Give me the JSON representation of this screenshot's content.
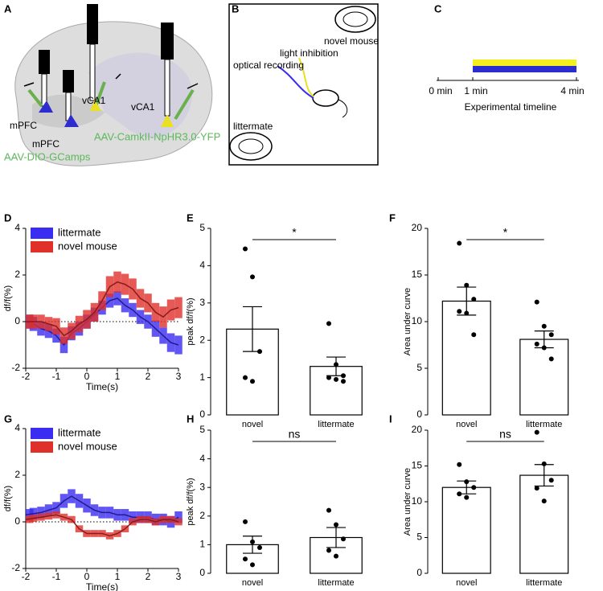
{
  "panels": [
    "A",
    "B",
    "C",
    "D",
    "E",
    "F",
    "G",
    "H",
    "I"
  ],
  "diagram_a": {
    "labels": [
      "mPFC",
      "mPFC",
      "vCA1",
      "vCA1"
    ],
    "virus_labels": [
      "AAV-CamkII-NpHR3.0-YFP",
      "AAV-DIO-GCamps"
    ]
  },
  "diagram_b": {
    "labels": [
      "novel mouse",
      "light inhibition",
      "optical recording",
      "littermate"
    ]
  },
  "diagram_c": {
    "ticks": [
      "0 min",
      "1 min",
      "4 min"
    ],
    "label": "Experimental timeline"
  },
  "chart_data": [
    {
      "type": "line",
      "panel": "D",
      "xlabel": "Time(s)",
      "ylabel": "df/f(%)",
      "x": [
        -2,
        -1.75,
        -1.5,
        -1.25,
        -1,
        -0.75,
        -0.5,
        -0.25,
        0,
        0.25,
        0.5,
        0.75,
        1,
        1.25,
        1.5,
        1.75,
        2,
        2.25,
        2.5,
        2.75,
        3
      ],
      "xlim": [
        -2,
        3
      ],
      "xticks": [
        -2,
        -1,
        0,
        1,
        2,
        3
      ],
      "ylim": [
        -2,
        4
      ],
      "yticks": [
        -2,
        0,
        2,
        4
      ],
      "legend": "upper left",
      "series": [
        {
          "name": "littermate",
          "color": "#3a2cf0",
          "values": [
            0,
            -0.1,
            -0.3,
            -0.4,
            -0.6,
            -1.0,
            -0.5,
            -0.3,
            0,
            0.3,
            0.6,
            0.9,
            1.0,
            0.7,
            0.5,
            0.2,
            0,
            -0.3,
            -0.6,
            -0.9,
            -1.0
          ],
          "errors": [
            0.3,
            0.3,
            0.3,
            0.3,
            0.3,
            0.35,
            0.3,
            0.3,
            0.3,
            0.3,
            0.3,
            0.3,
            0.3,
            0.3,
            0.3,
            0.3,
            0.3,
            0.35,
            0.35,
            0.4,
            0.4
          ]
        },
        {
          "name": "novel mouse",
          "color": "#e0302a",
          "values": [
            0,
            0,
            0,
            -0.1,
            -0.2,
            -0.6,
            -0.4,
            -0.1,
            0.1,
            0.4,
            0.9,
            1.5,
            1.7,
            1.6,
            1.4,
            1.0,
            0.8,
            0.4,
            0.2,
            0.5,
            0.6
          ],
          "errors": [
            0.3,
            0.3,
            0.3,
            0.3,
            0.35,
            0.35,
            0.35,
            0.35,
            0.4,
            0.4,
            0.4,
            0.45,
            0.45,
            0.45,
            0.45,
            0.4,
            0.4,
            0.4,
            0.45,
            0.45,
            0.45
          ]
        }
      ]
    },
    {
      "type": "bar",
      "panel": "E",
      "ylabel": "peak df/f(%)",
      "annotation": "*",
      "categories": [
        "novel",
        "littermate"
      ],
      "values": [
        2.3,
        1.3
      ],
      "errors": [
        0.6,
        0.25
      ],
      "points": [
        [
          4.45,
          3.7,
          1.7,
          1.0,
          0.9
        ],
        [
          2.45,
          1.35,
          1.05,
          1.0,
          0.95,
          0.9
        ]
      ],
      "ylim": [
        0,
        5
      ],
      "yticks": [
        0,
        1,
        2,
        3,
        4,
        5
      ],
      "color": "#ffffff"
    },
    {
      "type": "bar",
      "panel": "F",
      "ylabel": "Area under curve",
      "annotation": "*",
      "categories": [
        "novel",
        "littermate"
      ],
      "values": [
        12.2,
        8.1
      ],
      "errors": [
        1.5,
        0.9
      ],
      "points": [
        [
          18.4,
          13.9,
          12.4,
          11.1,
          10.9,
          8.6
        ],
        [
          12.1,
          9.5,
          8.6,
          7.6,
          7.2,
          6.0
        ]
      ],
      "ylim": [
        0,
        20
      ],
      "yticks": [
        0,
        5,
        10,
        15,
        20
      ],
      "color": "#ffffff"
    },
    {
      "type": "line",
      "panel": "G",
      "xlabel": "Time(s)",
      "ylabel": "df/f(%)",
      "x": [
        -2,
        -1.75,
        -1.5,
        -1.25,
        -1,
        -0.75,
        -0.5,
        -0.25,
        0,
        0.25,
        0.5,
        0.75,
        1,
        1.25,
        1.5,
        1.75,
        2,
        2.25,
        2.5,
        2.75,
        3
      ],
      "xlim": [
        -2,
        3
      ],
      "xticks": [
        -2,
        -1,
        0,
        1,
        2,
        3
      ],
      "ylim": [
        -2,
        4
      ],
      "yticks": [
        -2,
        0,
        2,
        4
      ],
      "legend": "upper left",
      "series": [
        {
          "name": "littermate",
          "color": "#3a2cf0",
          "values": [
            0.3,
            0.35,
            0.4,
            0.5,
            0.6,
            0.9,
            1.1,
            0.9,
            0.7,
            0.5,
            0.4,
            0.4,
            0.3,
            0.3,
            0.2,
            0.2,
            0.2,
            0.1,
            0.1,
            0,
            0.2
          ],
          "errors": [
            0.25,
            0.25,
            0.25,
            0.25,
            0.25,
            0.3,
            0.3,
            0.3,
            0.3,
            0.25,
            0.25,
            0.25,
            0.25,
            0.25,
            0.25,
            0.25,
            0.25,
            0.25,
            0.25,
            0.25,
            0.25
          ]
        },
        {
          "name": "novel mouse",
          "color": "#e0302a",
          "values": [
            0.1,
            0.15,
            0.2,
            0.25,
            0.3,
            0.2,
            0.1,
            -0.3,
            -0.5,
            -0.5,
            -0.5,
            -0.6,
            -0.5,
            -0.3,
            0,
            0.1,
            0.1,
            0,
            0.1,
            0.1,
            0
          ],
          "errors": [
            0.15,
            0.15,
            0.15,
            0.15,
            0.15,
            0.15,
            0.15,
            0.15,
            0.15,
            0.15,
            0.15,
            0.15,
            0.15,
            0.15,
            0.15,
            0.15,
            0.15,
            0.15,
            0.15,
            0.15,
            0.15
          ]
        }
      ]
    },
    {
      "type": "bar",
      "panel": "H",
      "ylabel": "peak df/f(%)",
      "annotation": "ns",
      "categories": [
        "novel",
        "littermate"
      ],
      "values": [
        1.0,
        1.25
      ],
      "errors": [
        0.3,
        0.35
      ],
      "points": [
        [
          1.8,
          1.1,
          0.9,
          0.5,
          0.3
        ],
        [
          2.2,
          1.7,
          1.2,
          0.8,
          0.6
        ]
      ],
      "ylim": [
        0,
        5
      ],
      "yticks": [
        0,
        1,
        2,
        3,
        4,
        5
      ],
      "color": "#ffffff"
    },
    {
      "type": "bar",
      "panel": "I",
      "ylabel": "Area under curve",
      "annotation": "ns",
      "categories": [
        "novel",
        "littermate"
      ],
      "values": [
        12.0,
        13.7
      ],
      "errors": [
        0.9,
        1.5
      ],
      "points": [
        [
          15.2,
          12.8,
          12.0,
          11.1,
          10.6
        ],
        [
          19.7,
          15.3,
          13.0,
          11.9,
          10.1
        ]
      ],
      "ylim": [
        0,
        20
      ],
      "yticks": [
        0,
        5,
        10,
        15,
        20
      ],
      "color": "#ffffff"
    }
  ]
}
